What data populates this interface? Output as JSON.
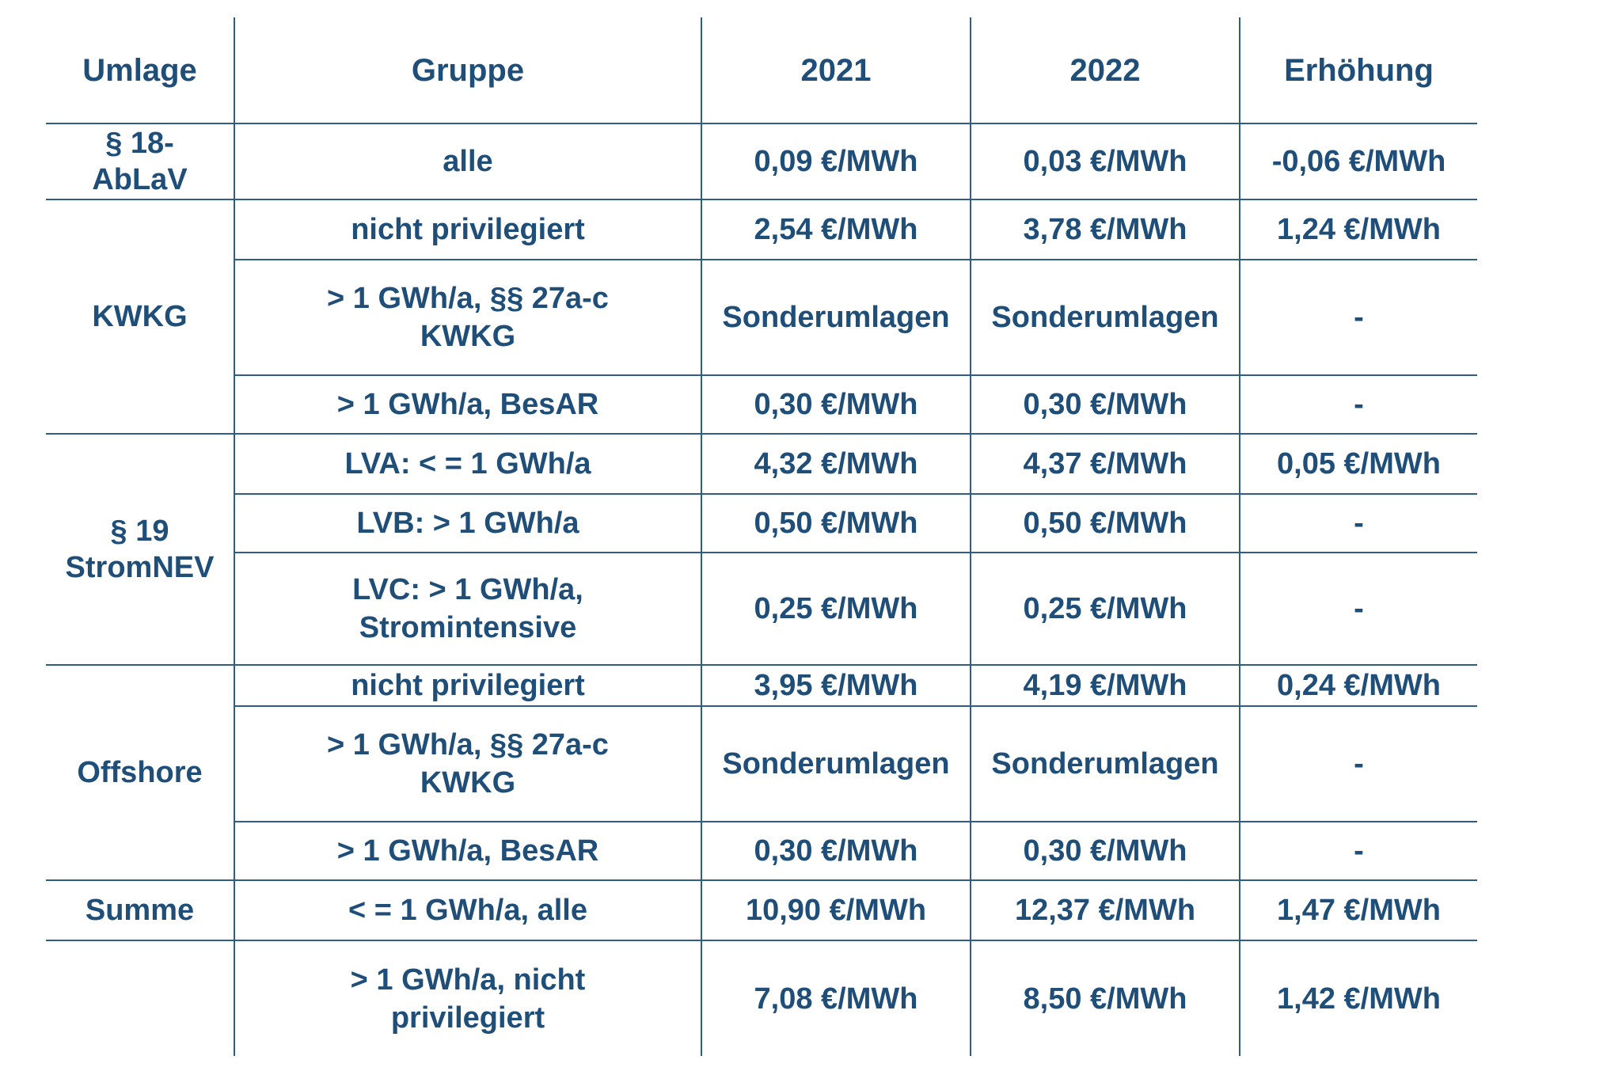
{
  "header": {
    "umlage": "Umlage",
    "gruppe": "Gruppe",
    "y2021": "2021",
    "y2022": "2022",
    "erhoehung": "Erhöhung"
  },
  "sections": [
    {
      "umlage": "§ 18-\nAbLaV",
      "rows": [
        {
          "gruppe": "alle",
          "y2021": "0,09 €/MWh",
          "y2022": "0,03 €/MWh",
          "erhoehung": "-0,06 €/MWh"
        }
      ]
    },
    {
      "umlage": "KWKG",
      "rows": [
        {
          "gruppe": "nicht privilegiert",
          "y2021": "2,54 €/MWh",
          "y2022": "3,78 €/MWh",
          "erhoehung": "1,24 €/MWh"
        },
        {
          "gruppe": ">  1 GWh/a,  §§ 27a-c\nKWKG",
          "y2021": "Sonderumlagen",
          "y2022": "Sonderumlagen",
          "erhoehung": "-"
        },
        {
          "gruppe": ">  1 GWh/a,  BesAR",
          "y2021": "0,30 €/MWh",
          "y2022": "0,30 €/MWh",
          "erhoehung": "-"
        }
      ]
    },
    {
      "umlage": "§ 19\nStromNEV",
      "rows": [
        {
          "gruppe": "LVA: < = 1 GWh/a",
          "y2021": "4,32 €/MWh",
          "y2022": "4,37 €/MWh",
          "erhoehung": "0,05 €/MWh"
        },
        {
          "gruppe": "LVB: > 1 GWh/a",
          "y2021": "0,50 €/MWh",
          "y2022": "0,50 €/MWh",
          "erhoehung": "-"
        },
        {
          "gruppe": "LVC: > 1 GWh/a,\nStromintensive",
          "y2021": "0,25 €/MWh",
          "y2022": "0,25 €/MWh",
          "erhoehung": "-"
        }
      ]
    },
    {
      "umlage": "Offshore",
      "rows": [
        {
          "gruppe": "nicht privilegiert",
          "y2021": "3,95 €/MWh",
          "y2022": "4,19 €/MWh",
          "erhoehung": "0,24 €/MWh"
        },
        {
          "gruppe": ">  1 GWh/a,  §§ 27a-c\nKWKG",
          "y2021": "Sonderumlagen",
          "y2022": "Sonderumlagen",
          "erhoehung": "-"
        },
        {
          "gruppe": ">  1 GWh/a,  BesAR",
          "y2021": "0,30 €/MWh",
          "y2022": "0,30 €/MWh",
          "erhoehung": "-"
        }
      ]
    },
    {
      "umlage": "Summe",
      "rows": [
        {
          "gruppe": "< = 1 GWh/a, alle",
          "y2021": "10,90 €/MWh",
          "y2022": "12,37 €/MWh",
          "erhoehung": "1,47 €/MWh"
        }
      ]
    },
    {
      "umlage": "",
      "rows": [
        {
          "gruppe": ">  1 GWh/a,  nicht\nprivilegiert",
          "y2021": "7,08 €/MWh",
          "y2022": "8,50 €/MWh",
          "erhoehung": "1,42 €/MWh"
        }
      ]
    }
  ],
  "colors": {
    "text": "#1f4e79",
    "rule": "#2e5d86",
    "background": "#ffffff"
  }
}
